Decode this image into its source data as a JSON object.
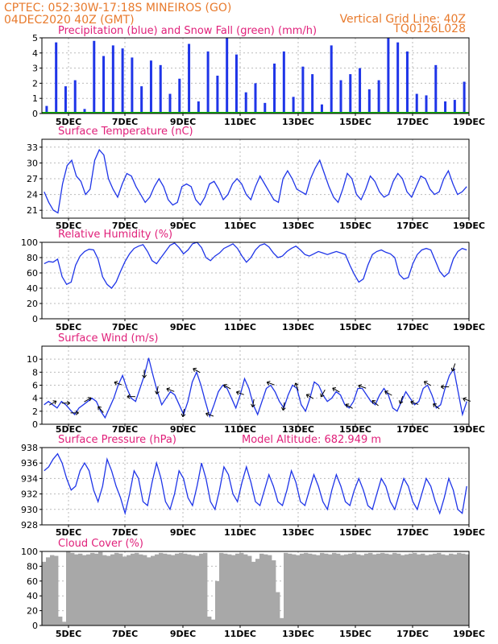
{
  "header": {
    "line1": "CPTEC:   052:30W-17:18S   MINEIROS (GO)",
    "line2": "04DEC2020 40Z (GMT)",
    "grid_note": "Vertical Grid Line: 40Z",
    "model_id": "TQ0126L028"
  },
  "colors": {
    "header": "#e87a2c",
    "title": "#e0207a",
    "line": "#1f35e8",
    "precip": "#1f35e8",
    "snow": "#10b010",
    "cloud": "#a8a8a8"
  },
  "chart_data": [
    {
      "id": "precip",
      "type": "bar",
      "title": "Precipitation (blue) and Snow Fall (green) (mm/h)",
      "x_ticks": [
        "5DEC",
        "7DEC",
        "9DEC",
        "11DEC",
        "13DEC",
        "15DEC",
        "17DEC",
        "19DEC"
      ],
      "y_ticks": [
        0,
        1,
        2,
        3,
        4,
        5
      ],
      "ylim": [
        0,
        5
      ],
      "grid": true,
      "series": [
        {
          "name": "Precipitation",
          "values": [
            0.5,
            4.7,
            1.8,
            2.2,
            0.3,
            4.8,
            3.8,
            4.5,
            4.3,
            3.7,
            1.8,
            3.5,
            3.2,
            1.3,
            2.3,
            4.6,
            0.8,
            4.1,
            2.5,
            5.0,
            3.9,
            1.4,
            2.0,
            0.7,
            3.3,
            4.1,
            1.1,
            3.1,
            2.6,
            0.6,
            4.5,
            2.2,
            2.6,
            3.0,
            1.6,
            2.2,
            5.0,
            4.7,
            4.1,
            1.3,
            1.2,
            3.2,
            0.8,
            0.9,
            2.1
          ]
        },
        {
          "name": "Snow Fall",
          "values": [
            0,
            0,
            0,
            0,
            0,
            0,
            0,
            0,
            0,
            0
          ]
        }
      ]
    },
    {
      "id": "temp",
      "type": "line",
      "title": "Surface Temperature (nC)",
      "x_ticks": [
        "5DEC",
        "7DEC",
        "9DEC",
        "11DEC",
        "13DEC",
        "15DEC",
        "17DEC",
        "19DEC"
      ],
      "y_ticks": [
        21,
        24,
        27,
        30,
        33
      ],
      "ylim": [
        19.5,
        34.5
      ],
      "grid": true,
      "values": [
        24.5,
        22.5,
        21.0,
        20.5,
        26.0,
        29.5,
        30.5,
        27.5,
        26.5,
        24.0,
        25.0,
        30.5,
        32.5,
        31.5,
        27.0,
        25.0,
        23.5,
        26.0,
        28.0,
        27.5,
        25.5,
        24.0,
        22.5,
        23.5,
        25.5,
        27.0,
        25.5,
        23.0,
        22.0,
        22.5,
        25.5,
        26.0,
        25.5,
        23.0,
        22.0,
        23.5,
        26.0,
        26.5,
        25.0,
        23.0,
        24.0,
        26.0,
        27.0,
        26.0,
        24.0,
        23.0,
        25.5,
        27.5,
        26.0,
        24.5,
        23.0,
        22.5,
        27.0,
        28.5,
        27.0,
        25.0,
        24.5,
        24.0,
        27.0,
        29.0,
        30.5,
        28.0,
        25.5,
        23.5,
        22.5,
        25.0,
        28.0,
        27.0,
        24.0,
        23.0,
        25.0,
        27.5,
        26.5,
        24.5,
        23.5,
        24.0,
        26.5,
        28.0,
        27.0,
        24.5,
        23.5,
        25.5,
        27.5,
        27.0,
        25.0,
        24.0,
        24.5,
        27.0,
        28.5,
        26.0,
        24.0,
        24.5,
        25.5
      ]
    },
    {
      "id": "rh",
      "type": "line",
      "title": "Relative Humidity (%)",
      "x_ticks": [
        "5DEC",
        "7DEC",
        "9DEC",
        "11DEC",
        "13DEC",
        "15DEC",
        "17DEC",
        "19DEC"
      ],
      "y_ticks": [
        0,
        20,
        40,
        60,
        80,
        100
      ],
      "ylim": [
        0,
        100
      ],
      "grid": true,
      "values": [
        72,
        75,
        74,
        78,
        55,
        45,
        48,
        70,
        82,
        88,
        91,
        90,
        78,
        55,
        45,
        40,
        48,
        62,
        75,
        85,
        92,
        95,
        97,
        88,
        76,
        72,
        80,
        88,
        96,
        99,
        93,
        85,
        90,
        98,
        100,
        93,
        80,
        76,
        82,
        86,
        92,
        95,
        98,
        92,
        82,
        74,
        80,
        90,
        96,
        98,
        94,
        86,
        80,
        82,
        88,
        92,
        95,
        90,
        84,
        82,
        85,
        88,
        86,
        84,
        86,
        88,
        86,
        84,
        70,
        58,
        48,
        52,
        70,
        84,
        88,
        90,
        87,
        85,
        80,
        58,
        52,
        54,
        72,
        84,
        90,
        92,
        90,
        76,
        62,
        55,
        60,
        78,
        88,
        92,
        90
      ]
    },
    {
      "id": "wind",
      "type": "line",
      "title": "Surface Wind (m/s)",
      "x_ticks": [
        "5DEC",
        "7DEC",
        "9DEC",
        "11DEC",
        "13DEC",
        "15DEC",
        "17DEC",
        "19DEC"
      ],
      "y_ticks": [
        0,
        2,
        4,
        6,
        8,
        10
      ],
      "ylim": [
        0,
        12
      ],
      "grid": true,
      "values": [
        3.0,
        3.5,
        3.0,
        2.5,
        3.5,
        3.0,
        2.2,
        1.5,
        2.5,
        3.0,
        3.5,
        4.0,
        3.5,
        2.0,
        1.0,
        2.5,
        4.0,
        6.0,
        7.5,
        5.5,
        4.0,
        3.5,
        5.5,
        7.5,
        10.2,
        7.5,
        5.0,
        3.0,
        4.0,
        5.0,
        4.5,
        3.0,
        1.5,
        3.5,
        6.5,
        8.0,
        6.0,
        3.5,
        1.2,
        3.0,
        5.0,
        6.0,
        5.5,
        4.0,
        2.5,
        4.5,
        7.0,
        5.5,
        3.0,
        1.5,
        3.5,
        5.5,
        6.0,
        5.0,
        3.5,
        2.5,
        4.5,
        6.0,
        5.5,
        3.0,
        2.0,
        4.0,
        6.5,
        6.0,
        4.5,
        3.5,
        4.0,
        5.0,
        4.5,
        3.0,
        2.5,
        3.5,
        5.5,
        5.5,
        4.5,
        3.5,
        3.0,
        4.5,
        5.5,
        4.5,
        2.5,
        2.0,
        3.5,
        5.0,
        4.0,
        3.0,
        3.5,
        5.5,
        6.0,
        4.5,
        2.5,
        3.0,
        5.5,
        7.5,
        8.5,
        5.0,
        1.5,
        3.5
      ],
      "wind_arrows": [
        {
          "x": 2,
          "angle": -30
        },
        {
          "x": 5,
          "angle": 0
        },
        {
          "x": 7,
          "angle": 0
        },
        {
          "x": 10,
          "angle": -30
        },
        {
          "x": 13,
          "angle": -130
        },
        {
          "x": 17,
          "angle": -160
        },
        {
          "x": 20,
          "angle": 180
        },
        {
          "x": 23,
          "angle": 90
        },
        {
          "x": 26,
          "angle": 100
        },
        {
          "x": 29,
          "angle": -160
        },
        {
          "x": 32,
          "angle": 100
        },
        {
          "x": 35,
          "angle": -150
        },
        {
          "x": 38,
          "angle": -160
        },
        {
          "x": 42,
          "angle": -150
        },
        {
          "x": 45,
          "angle": -160
        },
        {
          "x": 48,
          "angle": 100
        },
        {
          "x": 52,
          "angle": -160
        },
        {
          "x": 55,
          "angle": 100
        },
        {
          "x": 58,
          "angle": -110
        },
        {
          "x": 61,
          "angle": -150
        },
        {
          "x": 64,
          "angle": 120
        },
        {
          "x": 67,
          "angle": -150
        },
        {
          "x": 70,
          "angle": -150
        },
        {
          "x": 73,
          "angle": -160
        },
        {
          "x": 76,
          "angle": -140
        },
        {
          "x": 79,
          "angle": -150
        },
        {
          "x": 82,
          "angle": 110
        },
        {
          "x": 85,
          "angle": -160
        },
        {
          "x": 88,
          "angle": -150
        },
        {
          "x": 90,
          "angle": -140
        },
        {
          "x": 92,
          "angle": 180
        },
        {
          "x": 94,
          "angle": 110
        },
        {
          "x": 97,
          "angle": -160
        }
      ]
    },
    {
      "id": "pressure",
      "type": "line",
      "title": "Surface Pressure (hPa)",
      "annotation": "Model Altitude: 682.949  m",
      "x_ticks": [
        "5DEC",
        "7DEC",
        "9DEC",
        "11DEC",
        "13DEC",
        "15DEC",
        "17DEC",
        "19DEC"
      ],
      "y_ticks": [
        928,
        930,
        932,
        934,
        936,
        938
      ],
      "ylim": [
        928,
        938
      ],
      "grid": true,
      "values": [
        935.0,
        935.5,
        936.5,
        937.2,
        936.0,
        934.0,
        932.5,
        933.0,
        935.0,
        936.0,
        935.0,
        932.5,
        931.0,
        933.0,
        936.5,
        935.0,
        933.0,
        931.5,
        929.5,
        932.0,
        935.0,
        934.0,
        931.0,
        930.5,
        933.5,
        936.0,
        934.0,
        931.0,
        930.0,
        932.0,
        935.0,
        934.0,
        931.5,
        930.5,
        933.0,
        936.0,
        934.0,
        931.0,
        930.0,
        932.5,
        935.5,
        934.5,
        932.0,
        931.0,
        933.5,
        935.5,
        933.5,
        931.0,
        930.5,
        932.5,
        934.5,
        933.0,
        931.0,
        930.5,
        932.5,
        935.0,
        933.5,
        931.0,
        930.5,
        932.5,
        934.5,
        933.0,
        931.0,
        930.0,
        932.5,
        934.5,
        933.0,
        931.0,
        930.5,
        932.5,
        934.0,
        932.5,
        930.5,
        930.0,
        932.0,
        934.0,
        933.0,
        931.0,
        930.0,
        932.0,
        934.0,
        933.0,
        931.0,
        930.0,
        932.0,
        934.0,
        933.0,
        931.0,
        929.5,
        931.5,
        934.0,
        932.5,
        930.0,
        929.5,
        933.0
      ]
    },
    {
      "id": "cloud",
      "type": "bar",
      "title": "Cloud Cover (%)",
      "x_ticks": [
        "5DEC",
        "7DEC",
        "9DEC",
        "11DEC",
        "13DEC",
        "15DEC",
        "17DEC",
        "19DEC"
      ],
      "y_ticks": [
        0,
        20,
        40,
        60,
        80,
        100
      ],
      "ylim": [
        0,
        100
      ],
      "grid": true,
      "values": [
        86,
        92,
        95,
        94,
        12,
        5,
        100,
        98,
        96,
        97,
        95,
        96,
        98,
        97,
        99,
        95,
        94,
        96,
        98,
        97,
        93,
        95,
        97,
        98,
        96,
        95,
        92,
        94,
        96,
        98,
        97,
        96,
        95,
        97,
        98,
        97,
        96,
        95,
        94,
        97,
        98,
        12,
        8,
        60,
        98,
        97,
        96,
        95,
        97,
        98,
        96,
        94,
        86,
        90,
        97,
        96,
        95,
        88,
        45,
        10,
        98,
        97,
        96,
        95,
        97,
        98,
        97,
        96,
        95,
        98,
        97,
        96,
        98,
        97,
        95,
        96,
        97,
        98,
        96,
        95,
        97,
        98,
        96,
        97,
        98,
        97,
        96,
        98,
        97,
        95,
        96,
        97,
        98,
        96,
        97,
        95,
        96,
        97,
        98,
        96,
        95,
        97,
        96,
        98,
        97,
        96
      ]
    }
  ]
}
